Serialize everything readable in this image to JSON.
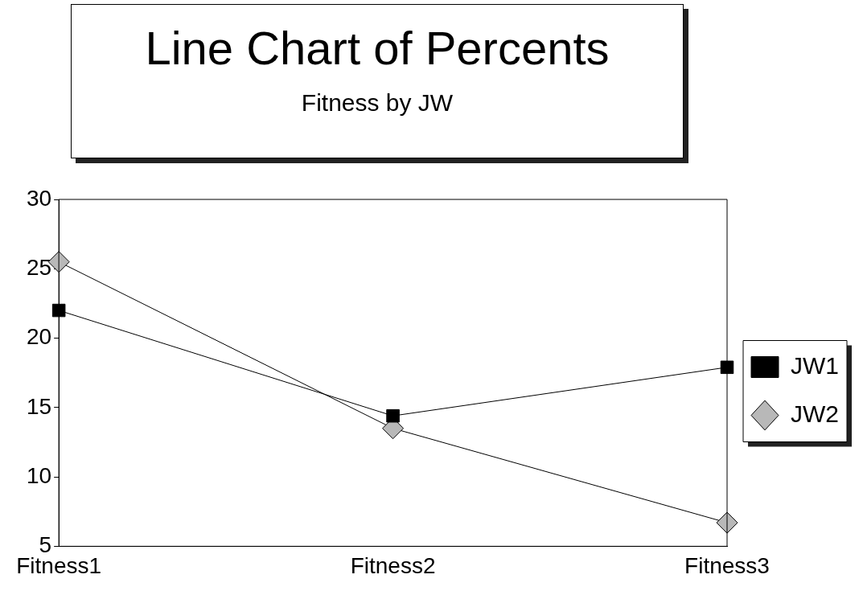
{
  "chart_data": {
    "type": "line",
    "title": "Line Chart of Percents",
    "subtitle": "Fitness by JW",
    "categories": [
      "Fitness1",
      "Fitness2",
      "Fitness3"
    ],
    "series": [
      {
        "name": "JW1",
        "color": "#000000",
        "marker": "square",
        "values": [
          22,
          14.4,
          17.9
        ]
      },
      {
        "name": "JW2",
        "color": "#b8b8b8",
        "marker": "diamond",
        "values": [
          25.5,
          13.5,
          6.7
        ]
      }
    ],
    "ylim": [
      5,
      30
    ],
    "yticks": [
      5,
      10,
      15,
      20,
      25,
      30
    ],
    "grid": false,
    "legend": "right"
  }
}
